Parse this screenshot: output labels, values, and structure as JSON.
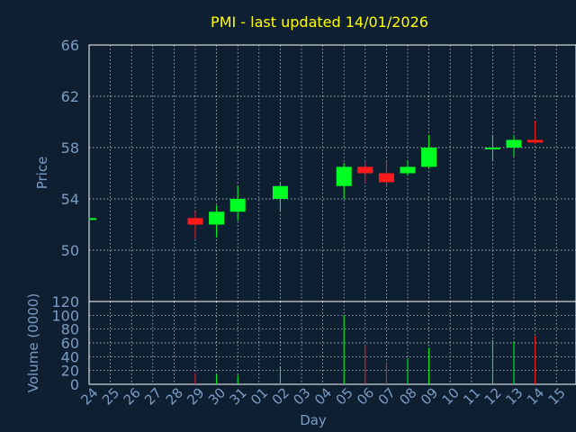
{
  "chart_data": {
    "type": "candlestick",
    "title": "PMI - last updated 14/01/2026",
    "xlabel": "Day",
    "price_panel": {
      "ylabel": "Price",
      "ylim": [
        46,
        66
      ],
      "yticks": [
        "50",
        "54",
        "58",
        "62",
        "66"
      ]
    },
    "volume_panel": {
      "ylabel": "Volume (0000)",
      "ylim": [
        0,
        120
      ],
      "yticks": [
        "0",
        "20",
        "40",
        "60",
        "80",
        "100",
        "120"
      ]
    },
    "x_ticks": [
      "24",
      "25",
      "26",
      "27",
      "28",
      "29",
      "30",
      "31",
      "01",
      "02",
      "03",
      "04",
      "05",
      "06",
      "07",
      "08",
      "09",
      "10",
      "11",
      "12",
      "13",
      "14",
      "15"
    ],
    "grid": true,
    "colors": {
      "up": "#00ff22",
      "down": "#ff1a1a",
      "background": "#0f1f32",
      "title": "#ffff00",
      "axis_text": "#7a9cc4"
    },
    "candles": [
      {
        "day": "24",
        "open": 52.4,
        "high": 52.5,
        "low": 52.4,
        "close": 52.5,
        "volume": 0,
        "direction": "up"
      },
      {
        "day": "29",
        "open": 52.5,
        "high": 53.0,
        "low": 50.9,
        "close": 52.0,
        "volume": 16,
        "direction": "down"
      },
      {
        "day": "30",
        "open": 52.0,
        "high": 53.5,
        "low": 51.0,
        "close": 53.0,
        "volume": 14,
        "direction": "up"
      },
      {
        "day": "31",
        "open": 53.0,
        "high": 55.0,
        "low": 52.3,
        "close": 54.0,
        "volume": 13,
        "direction": "up"
      },
      {
        "day": "02",
        "open": 54.0,
        "high": 55.3,
        "low": 53.0,
        "close": 55.0,
        "volume": 25,
        "direction": "up"
      },
      {
        "day": "05",
        "open": 55.0,
        "high": 56.8,
        "low": 54.0,
        "close": 56.5,
        "volume": 100,
        "direction": "up"
      },
      {
        "day": "06",
        "open": 56.5,
        "high": 56.9,
        "low": 55.2,
        "close": 56.0,
        "volume": 58,
        "direction": "down"
      },
      {
        "day": "07",
        "open": 56.0,
        "high": 57.0,
        "low": 55.0,
        "close": 55.3,
        "volume": 32,
        "direction": "down"
      },
      {
        "day": "08",
        "open": 56.0,
        "high": 57.0,
        "low": 55.8,
        "close": 56.5,
        "volume": 38,
        "direction": "up"
      },
      {
        "day": "09",
        "open": 56.5,
        "high": 59.0,
        "low": 56.4,
        "close": 58.0,
        "volume": 53,
        "direction": "up"
      },
      {
        "day": "12",
        "open": 57.9,
        "high": 59.0,
        "low": 57.0,
        "close": 58.0,
        "volume": 64,
        "direction": "up"
      },
      {
        "day": "13",
        "open": 58.0,
        "high": 59.0,
        "low": 57.3,
        "close": 58.6,
        "volume": 62,
        "direction": "up"
      },
      {
        "day": "14",
        "open": 58.6,
        "high": 60.1,
        "low": 58.3,
        "close": 58.4,
        "volume": 70,
        "direction": "down"
      }
    ]
  }
}
